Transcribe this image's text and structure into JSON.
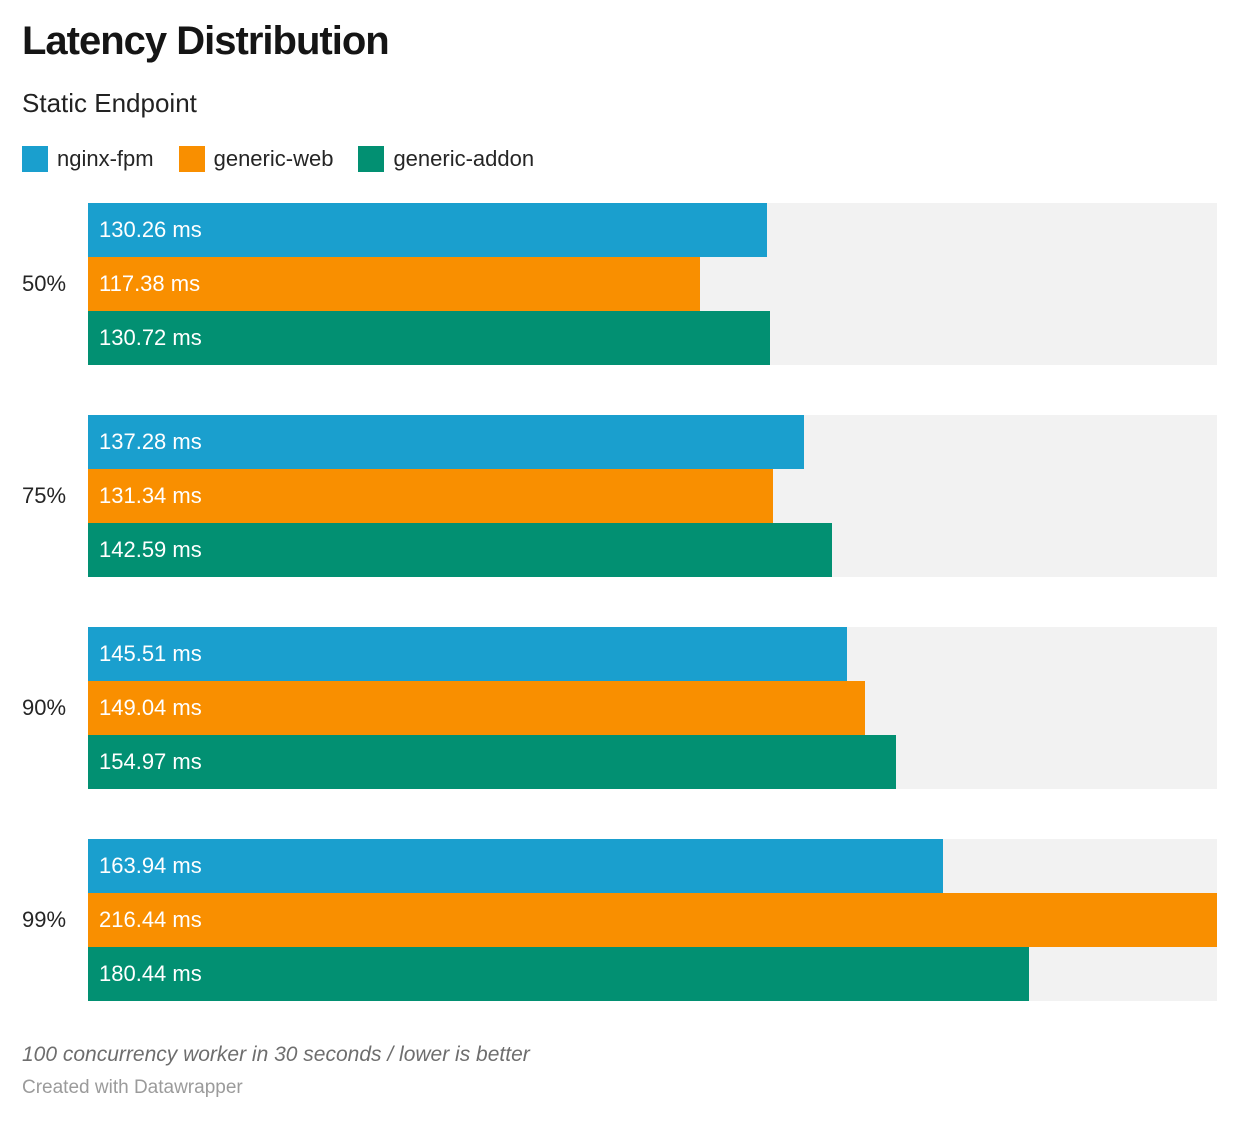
{
  "header": {
    "title": "Latency Distribution",
    "subtitle": "Static Endpoint"
  },
  "legend": [
    {
      "label": "nginx-fpm",
      "color": "#1A9FCE"
    },
    {
      "label": "generic-web",
      "color": "#F98F00"
    },
    {
      "label": "generic-addon",
      "color": "#029072"
    }
  ],
  "chart_data": {
    "type": "bar",
    "orientation": "horizontal",
    "title": "Latency Distribution",
    "subtitle": "Static Endpoint",
    "categories": [
      "50%",
      "75%",
      "90%",
      "99%"
    ],
    "series": [
      {
        "name": "nginx-fpm",
        "color": "#1A9FCE",
        "values": [
          130.26,
          137.28,
          145.51,
          163.94
        ],
        "labels": [
          "130.26 ms",
          "137.28 ms",
          "145.51 ms",
          "163.94 ms"
        ]
      },
      {
        "name": "generic-web",
        "color": "#F98F00",
        "values": [
          117.38,
          131.34,
          149.04,
          216.44
        ],
        "labels": [
          "117.38 ms",
          "131.34 ms",
          "149.04 ms",
          "216.44 ms"
        ]
      },
      {
        "name": "generic-addon",
        "color": "#029072",
        "values": [
          130.72,
          142.59,
          154.97,
          180.44
        ],
        "labels": [
          "130.72 ms",
          "142.59 ms",
          "154.97 ms",
          "180.44 ms"
        ]
      }
    ],
    "value_suffix": " ms",
    "xlim": [
      0,
      216.44
    ],
    "track_color": "#f2f2f2",
    "grid": false,
    "legend_position": "top"
  },
  "footer": {
    "note": "100 concurrency worker in 30 seconds / lower is better",
    "byline": "Created with Datawrapper"
  }
}
